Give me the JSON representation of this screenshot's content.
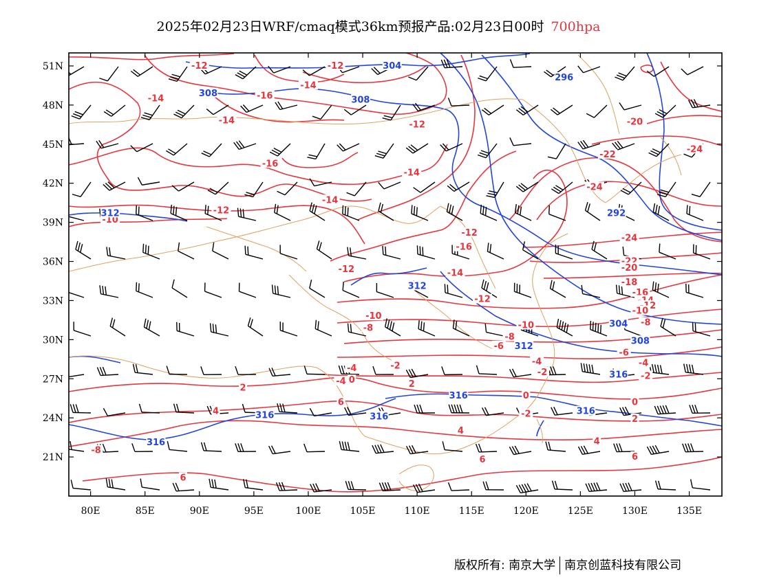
{
  "header": {
    "title": "2025年02月23日WRF/cmaq模式36km预报产品:02月23日00时",
    "level": "700hpa"
  },
  "axes": {
    "lat_labels": [
      "51N",
      "48N",
      "45N",
      "42N",
      "39N",
      "36N",
      "33N",
      "30N",
      "27N",
      "24N",
      "21N"
    ],
    "lon_labels": [
      "80E",
      "85E",
      "90E",
      "95E",
      "100E",
      "105E",
      "110E",
      "115E",
      "120E",
      "125E",
      "130E",
      "135E"
    ]
  },
  "colors": {
    "temperature": "#e8343c",
    "geopotential": "#2244dd",
    "border": "#e0a060",
    "wind": "#000000"
  },
  "temperature_labels": [
    {
      "text": "-12",
      "lon": 90,
      "lat": 51
    },
    {
      "text": "-14",
      "lon": 86,
      "lat": 48.5
    },
    {
      "text": "-16",
      "lon": 96,
      "lat": 48.7
    },
    {
      "text": "-14",
      "lon": 100,
      "lat": 49.5
    },
    {
      "text": "-14",
      "lon": 92.5,
      "lat": 46.8
    },
    {
      "text": "-12",
      "lon": 102.5,
      "lat": 51
    },
    {
      "text": "-12",
      "lon": 110,
      "lat": 46.5
    },
    {
      "text": "-16",
      "lon": 96.5,
      "lat": 43.5
    },
    {
      "text": "-14",
      "lon": 109.5,
      "lat": 42.8
    },
    {
      "text": "-14",
      "lon": 102,
      "lat": 40.7
    },
    {
      "text": "-12",
      "lon": 92,
      "lat": 39.9
    },
    {
      "text": "-10",
      "lon": 81.8,
      "lat": 39.2
    },
    {
      "text": "-12",
      "lon": 114.8,
      "lat": 38.2
    },
    {
      "text": "-16",
      "lon": 114.3,
      "lat": 37.1
    },
    {
      "text": "-12",
      "lon": 103.5,
      "lat": 35.4
    },
    {
      "text": "-14",
      "lon": 113.5,
      "lat": 35.1
    },
    {
      "text": "-12",
      "lon": 116,
      "lat": 33.1
    },
    {
      "text": "-10",
      "lon": 106,
      "lat": 31.8
    },
    {
      "text": "-8",
      "lon": 105.5,
      "lat": 30.9
    },
    {
      "text": "-10",
      "lon": 120,
      "lat": 31.1
    },
    {
      "text": "-8",
      "lon": 118.5,
      "lat": 30.2
    },
    {
      "text": "-6",
      "lon": 117.5,
      "lat": 29.5
    },
    {
      "text": "-4",
      "lon": 121,
      "lat": 28.3
    },
    {
      "text": "-2",
      "lon": 121.5,
      "lat": 27.5
    },
    {
      "text": "-2",
      "lon": 108,
      "lat": 28
    },
    {
      "text": "-4",
      "lon": 104,
      "lat": 27.8
    },
    {
      "text": "-4",
      "lon": 103,
      "lat": 26.8
    },
    {
      "text": "0",
      "lon": 104,
      "lat": 26.9
    },
    {
      "text": "2",
      "lon": 109.5,
      "lat": 26.6
    },
    {
      "text": "2",
      "lon": 94,
      "lat": 26.3
    },
    {
      "text": "4",
      "lon": 91.5,
      "lat": 24.5
    },
    {
      "text": "6",
      "lon": 103,
      "lat": 25.2
    },
    {
      "text": "4",
      "lon": 114,
      "lat": 23
    },
    {
      "text": "6",
      "lon": 116,
      "lat": 20.8
    },
    {
      "text": "-8",
      "lon": 80.5,
      "lat": 21.5
    },
    {
      "text": "6",
      "lon": 88.5,
      "lat": 19.4
    },
    {
      "text": "0",
      "lon": 120,
      "lat": 25.7
    },
    {
      "text": "-2",
      "lon": 120,
      "lat": 24.3
    },
    {
      "text": "0",
      "lon": 130,
      "lat": 25.2
    },
    {
      "text": "2",
      "lon": 130,
      "lat": 23.9
    },
    {
      "text": "4",
      "lon": 126.5,
      "lat": 22.2
    },
    {
      "text": "6",
      "lon": 130,
      "lat": 21
    },
    {
      "text": "-20",
      "lon": 130,
      "lat": 46.7
    },
    {
      "text": "-22",
      "lon": 127.5,
      "lat": 44.2
    },
    {
      "text": "-24",
      "lon": 135.5,
      "lat": 44.6
    },
    {
      "text": "-24",
      "lon": 126.3,
      "lat": 41.7
    },
    {
      "text": "-24",
      "lon": 129.5,
      "lat": 37.8
    },
    {
      "text": "-22",
      "lon": 129.5,
      "lat": 36
    },
    {
      "text": "-20",
      "lon": 129.5,
      "lat": 35.5
    },
    {
      "text": "-18",
      "lon": 129.5,
      "lat": 34.4
    },
    {
      "text": "-16",
      "lon": 130.5,
      "lat": 33.6
    },
    {
      "text": "-14",
      "lon": 131,
      "lat": 33
    },
    {
      "text": "-12",
      "lon": 131.2,
      "lat": 32.6
    },
    {
      "text": "-10",
      "lon": 130.5,
      "lat": 32.2
    },
    {
      "text": "-8",
      "lon": 131,
      "lat": 31.3
    },
    {
      "text": "-6",
      "lon": 129,
      "lat": 29
    },
    {
      "text": "-4",
      "lon": 130.8,
      "lat": 28.2
    },
    {
      "text": "-2",
      "lon": 131,
      "lat": 27.2
    }
  ],
  "geopotential_labels": [
    {
      "text": "304",
      "lon": 107.7,
      "lat": 51
    },
    {
      "text": "296",
      "lon": 123.5,
      "lat": 50.1
    },
    {
      "text": "308",
      "lon": 90.8,
      "lat": 48.9
    },
    {
      "text": "308",
      "lon": 104.8,
      "lat": 48.4
    },
    {
      "text": "292",
      "lon": 128.3,
      "lat": 39.7
    },
    {
      "text": "312",
      "lon": 81.8,
      "lat": 39.7
    },
    {
      "text": "312",
      "lon": 110,
      "lat": 34.1
    },
    {
      "text": "304",
      "lon": 128.5,
      "lat": 31.2
    },
    {
      "text": "308",
      "lon": 130.5,
      "lat": 29.9
    },
    {
      "text": "312",
      "lon": 119.8,
      "lat": 29.5
    },
    {
      "text": "316",
      "lon": 113.8,
      "lat": 25.7
    },
    {
      "text": "316",
      "lon": 128.5,
      "lat": 27.3
    },
    {
      "text": "316",
      "lon": 96,
      "lat": 24.2
    },
    {
      "text": "316",
      "lon": 106.5,
      "lat": 24.1
    },
    {
      "text": "316",
      "lon": 125.5,
      "lat": 24.5
    },
    {
      "text": "316",
      "lon": 86,
      "lat": 22.1
    }
  ],
  "footer": {
    "copyright": "版权所有: 南京大学",
    "company": "南京创蓝科技有限公司"
  }
}
